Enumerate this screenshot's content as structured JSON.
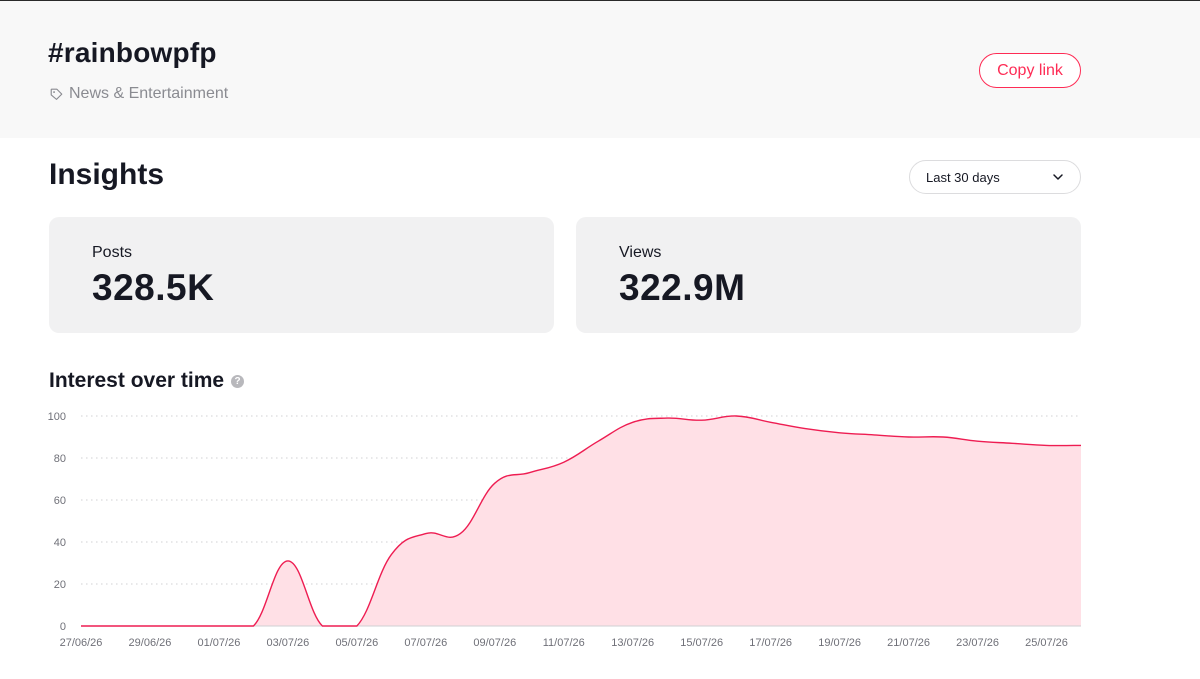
{
  "header": {
    "tag": "#rainbowpfp",
    "category": "News & Entertainment",
    "copy_link_label": "Copy link"
  },
  "insights": {
    "title": "Insights",
    "range_selected": "Last 30 days",
    "stats": [
      {
        "label": "Posts",
        "value": "328.5K"
      },
      {
        "label": "Views",
        "value": "322.9M"
      }
    ]
  },
  "colors": {
    "accent": "#fe2c55",
    "line": "#ee1d52",
    "area_fill": "#ffe0e6"
  },
  "chart_data": {
    "type": "area",
    "title": "Interest over time",
    "xlabel": "",
    "ylabel": "",
    "ylim": [
      0,
      100
    ],
    "y_ticks": [
      0,
      20,
      40,
      60,
      80,
      100
    ],
    "grid": true,
    "x": [
      "27/06/26",
      "28/06/26",
      "29/06/26",
      "30/06/26",
      "01/07/26",
      "02/07/26",
      "03/07/26",
      "04/07/26",
      "05/07/26",
      "06/07/26",
      "07/07/26",
      "08/07/26",
      "09/07/26",
      "10/07/26",
      "11/07/26",
      "12/07/26",
      "13/07/26",
      "14/07/26",
      "15/07/26",
      "16/07/26",
      "17/07/26",
      "18/07/26",
      "19/07/26",
      "20/07/26",
      "21/07/26",
      "22/07/26",
      "23/07/26",
      "24/07/26",
      "25/07/26",
      "26/07/26"
    ],
    "x_tick_labels": [
      "27/06/26",
      "29/06/26",
      "01/07/26",
      "03/07/26",
      "05/07/26",
      "07/07/26",
      "09/07/26",
      "11/07/26",
      "13/07/26",
      "15/07/26",
      "17/07/26",
      "19/07/26",
      "21/07/26",
      "23/07/26",
      "25/07/26"
    ],
    "values": [
      0,
      0,
      0,
      0,
      0,
      0,
      31,
      0,
      0,
      34,
      44,
      44,
      68,
      73,
      78,
      88,
      97,
      99,
      98,
      100,
      97,
      94,
      92,
      91,
      90,
      90,
      88,
      87,
      86,
      86
    ]
  }
}
